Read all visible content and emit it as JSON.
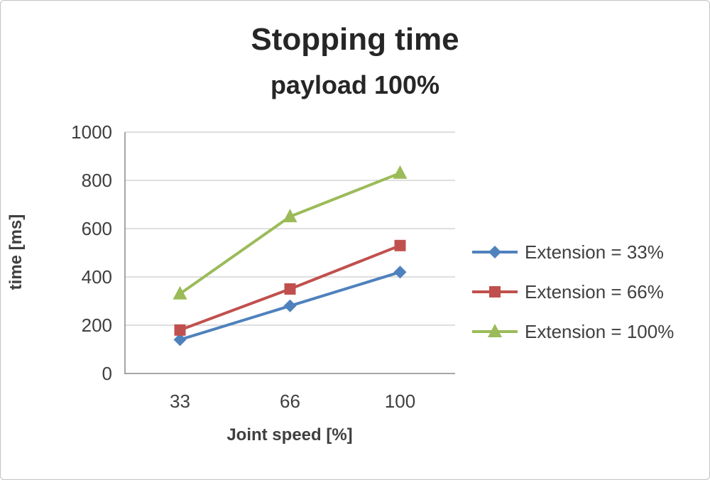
{
  "chart_data": {
    "type": "line",
    "title": "Stopping time",
    "subtitle": "payload 100%",
    "xlabel": "Joint speed [%]",
    "ylabel": "time [ms]",
    "categories": [
      "33",
      "66",
      "100"
    ],
    "series": [
      {
        "name": "Extension = 33%",
        "marker": "diamond",
        "color": "#4F81BD",
        "values": [
          140,
          280,
          420
        ]
      },
      {
        "name": "Extension = 66%",
        "marker": "square",
        "color": "#C0504D",
        "values": [
          180,
          350,
          530
        ]
      },
      {
        "name": "Extension = 100%",
        "marker": "triangle",
        "color": "#9BBB59",
        "values": [
          330,
          650,
          830
        ]
      }
    ],
    "ylim": [
      0,
      1000
    ],
    "yticks": [
      0,
      200,
      400,
      600,
      800,
      1000
    ],
    "grid": true,
    "legend_position": "right",
    "grid_color": "#BFBFBF",
    "axis_color": "#898989",
    "text_color": "#3F3F3F"
  }
}
